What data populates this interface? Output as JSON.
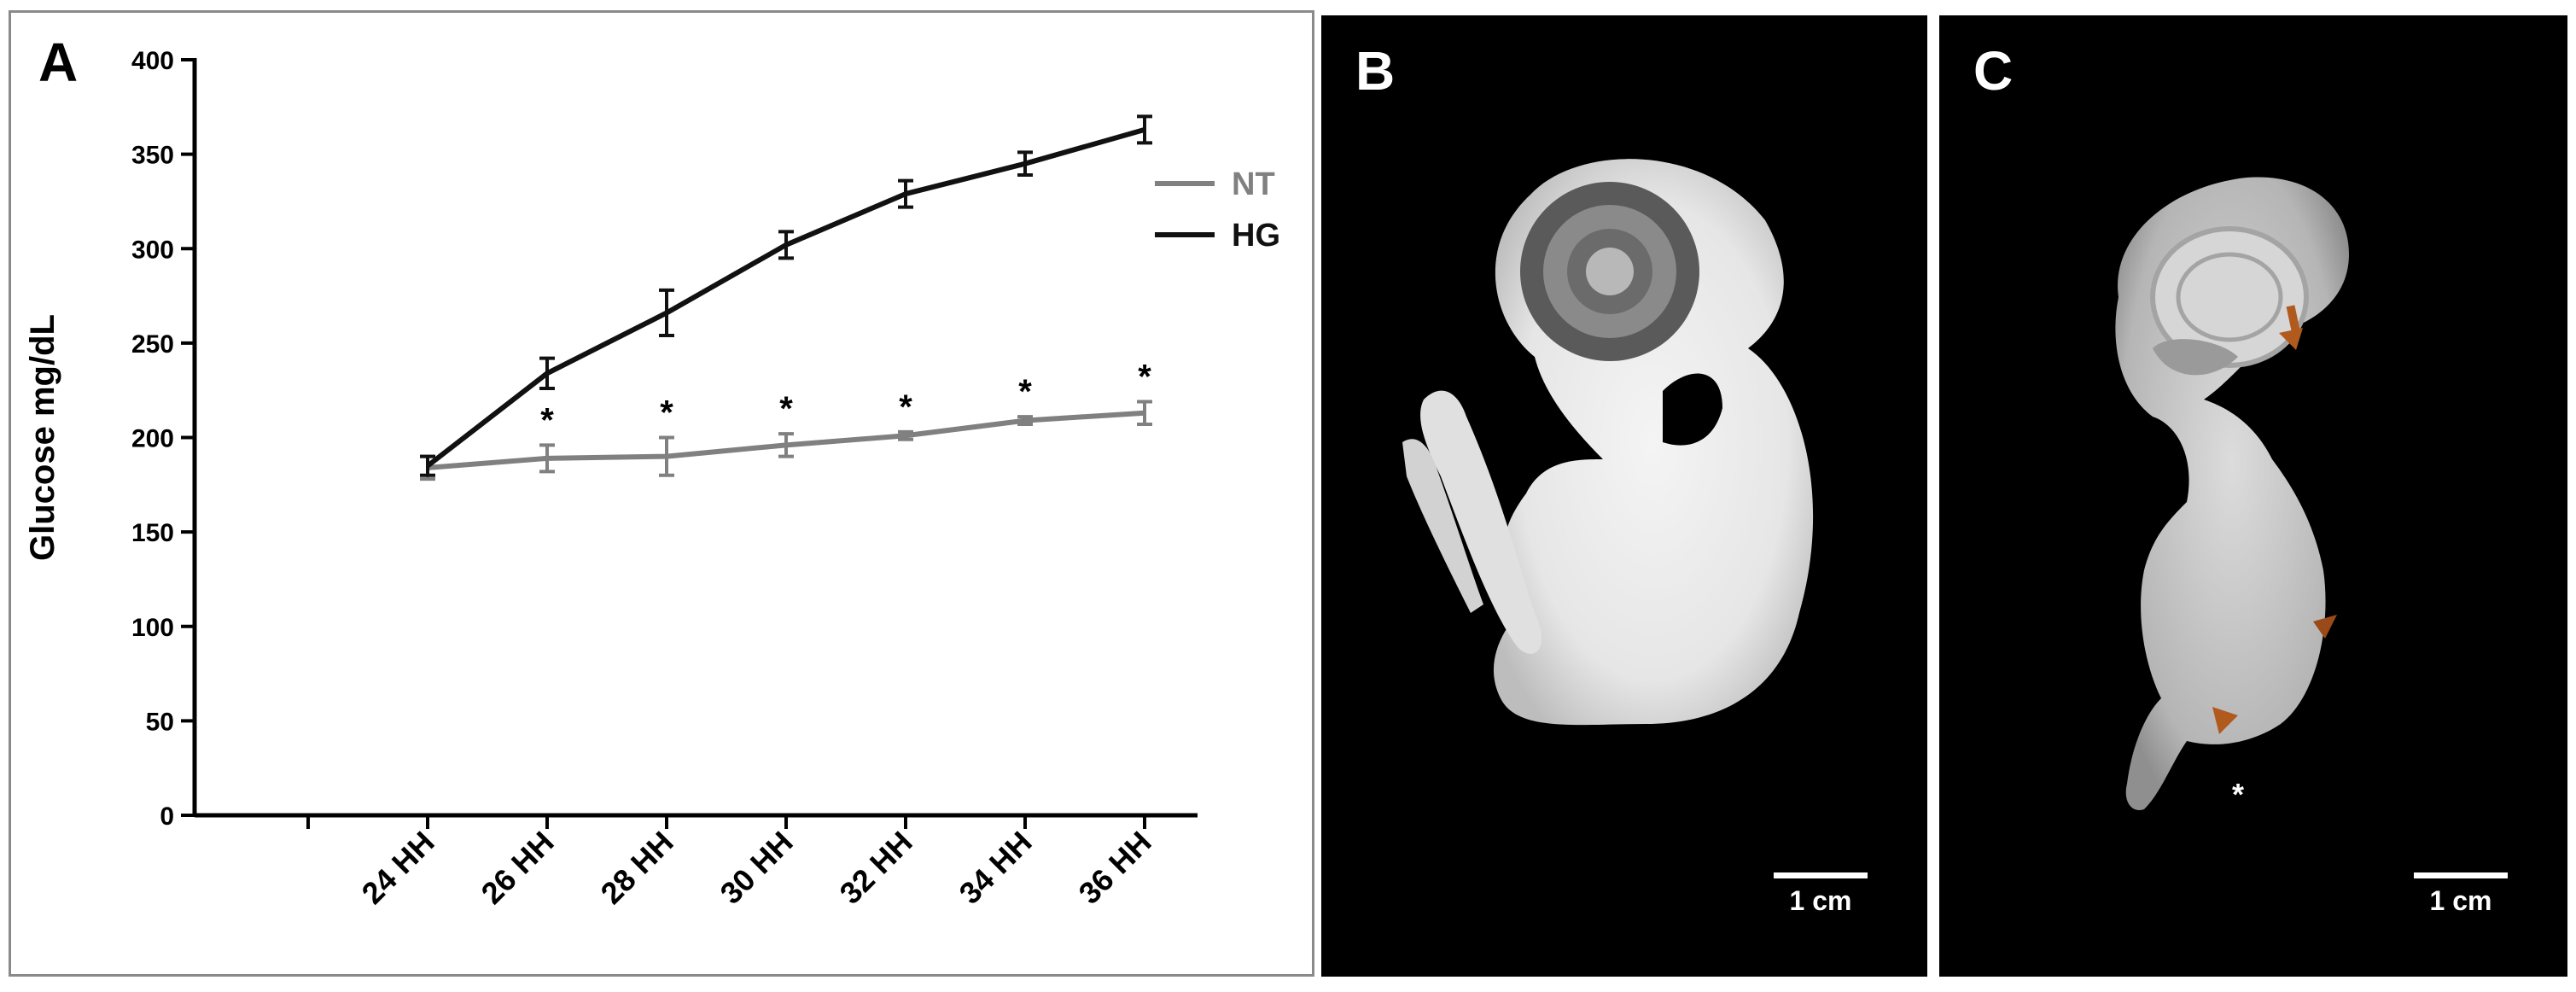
{
  "panels": {
    "a_label": "A",
    "b_label": "B",
    "c_label": "C",
    "b_scale_label": "1 cm",
    "c_scale_label": "1 cm",
    "c_asterisk": "*"
  },
  "chart_data": {
    "type": "line",
    "title": "",
    "xlabel": "",
    "ylabel": "Glucose mg/dL",
    "ylim": [
      0,
      400
    ],
    "yticks": [
      0,
      50,
      100,
      150,
      200,
      250,
      300,
      350,
      400
    ],
    "categories": [
      "24 HH",
      "26 HH",
      "28 HH",
      "30 HH",
      "32 HH",
      "34 HH",
      "36 HH"
    ],
    "legend": "top-right",
    "grid": false,
    "significance_marker": "*",
    "significant_categories": [
      "26 HH",
      "28 HH",
      "30 HH",
      "32 HH",
      "34 HH",
      "36 HH"
    ],
    "series": [
      {
        "name": "NT",
        "color": "#808080",
        "values": [
          184,
          189,
          190,
          196,
          201,
          209,
          213
        ],
        "errors": [
          6,
          7,
          10,
          6,
          2,
          2,
          6
        ]
      },
      {
        "name": "HG",
        "color": "#111111",
        "values": [
          185,
          234,
          266,
          302,
          329,
          345,
          363
        ],
        "errors": [
          5,
          8,
          12,
          7,
          7,
          6,
          7
        ]
      }
    ]
  }
}
